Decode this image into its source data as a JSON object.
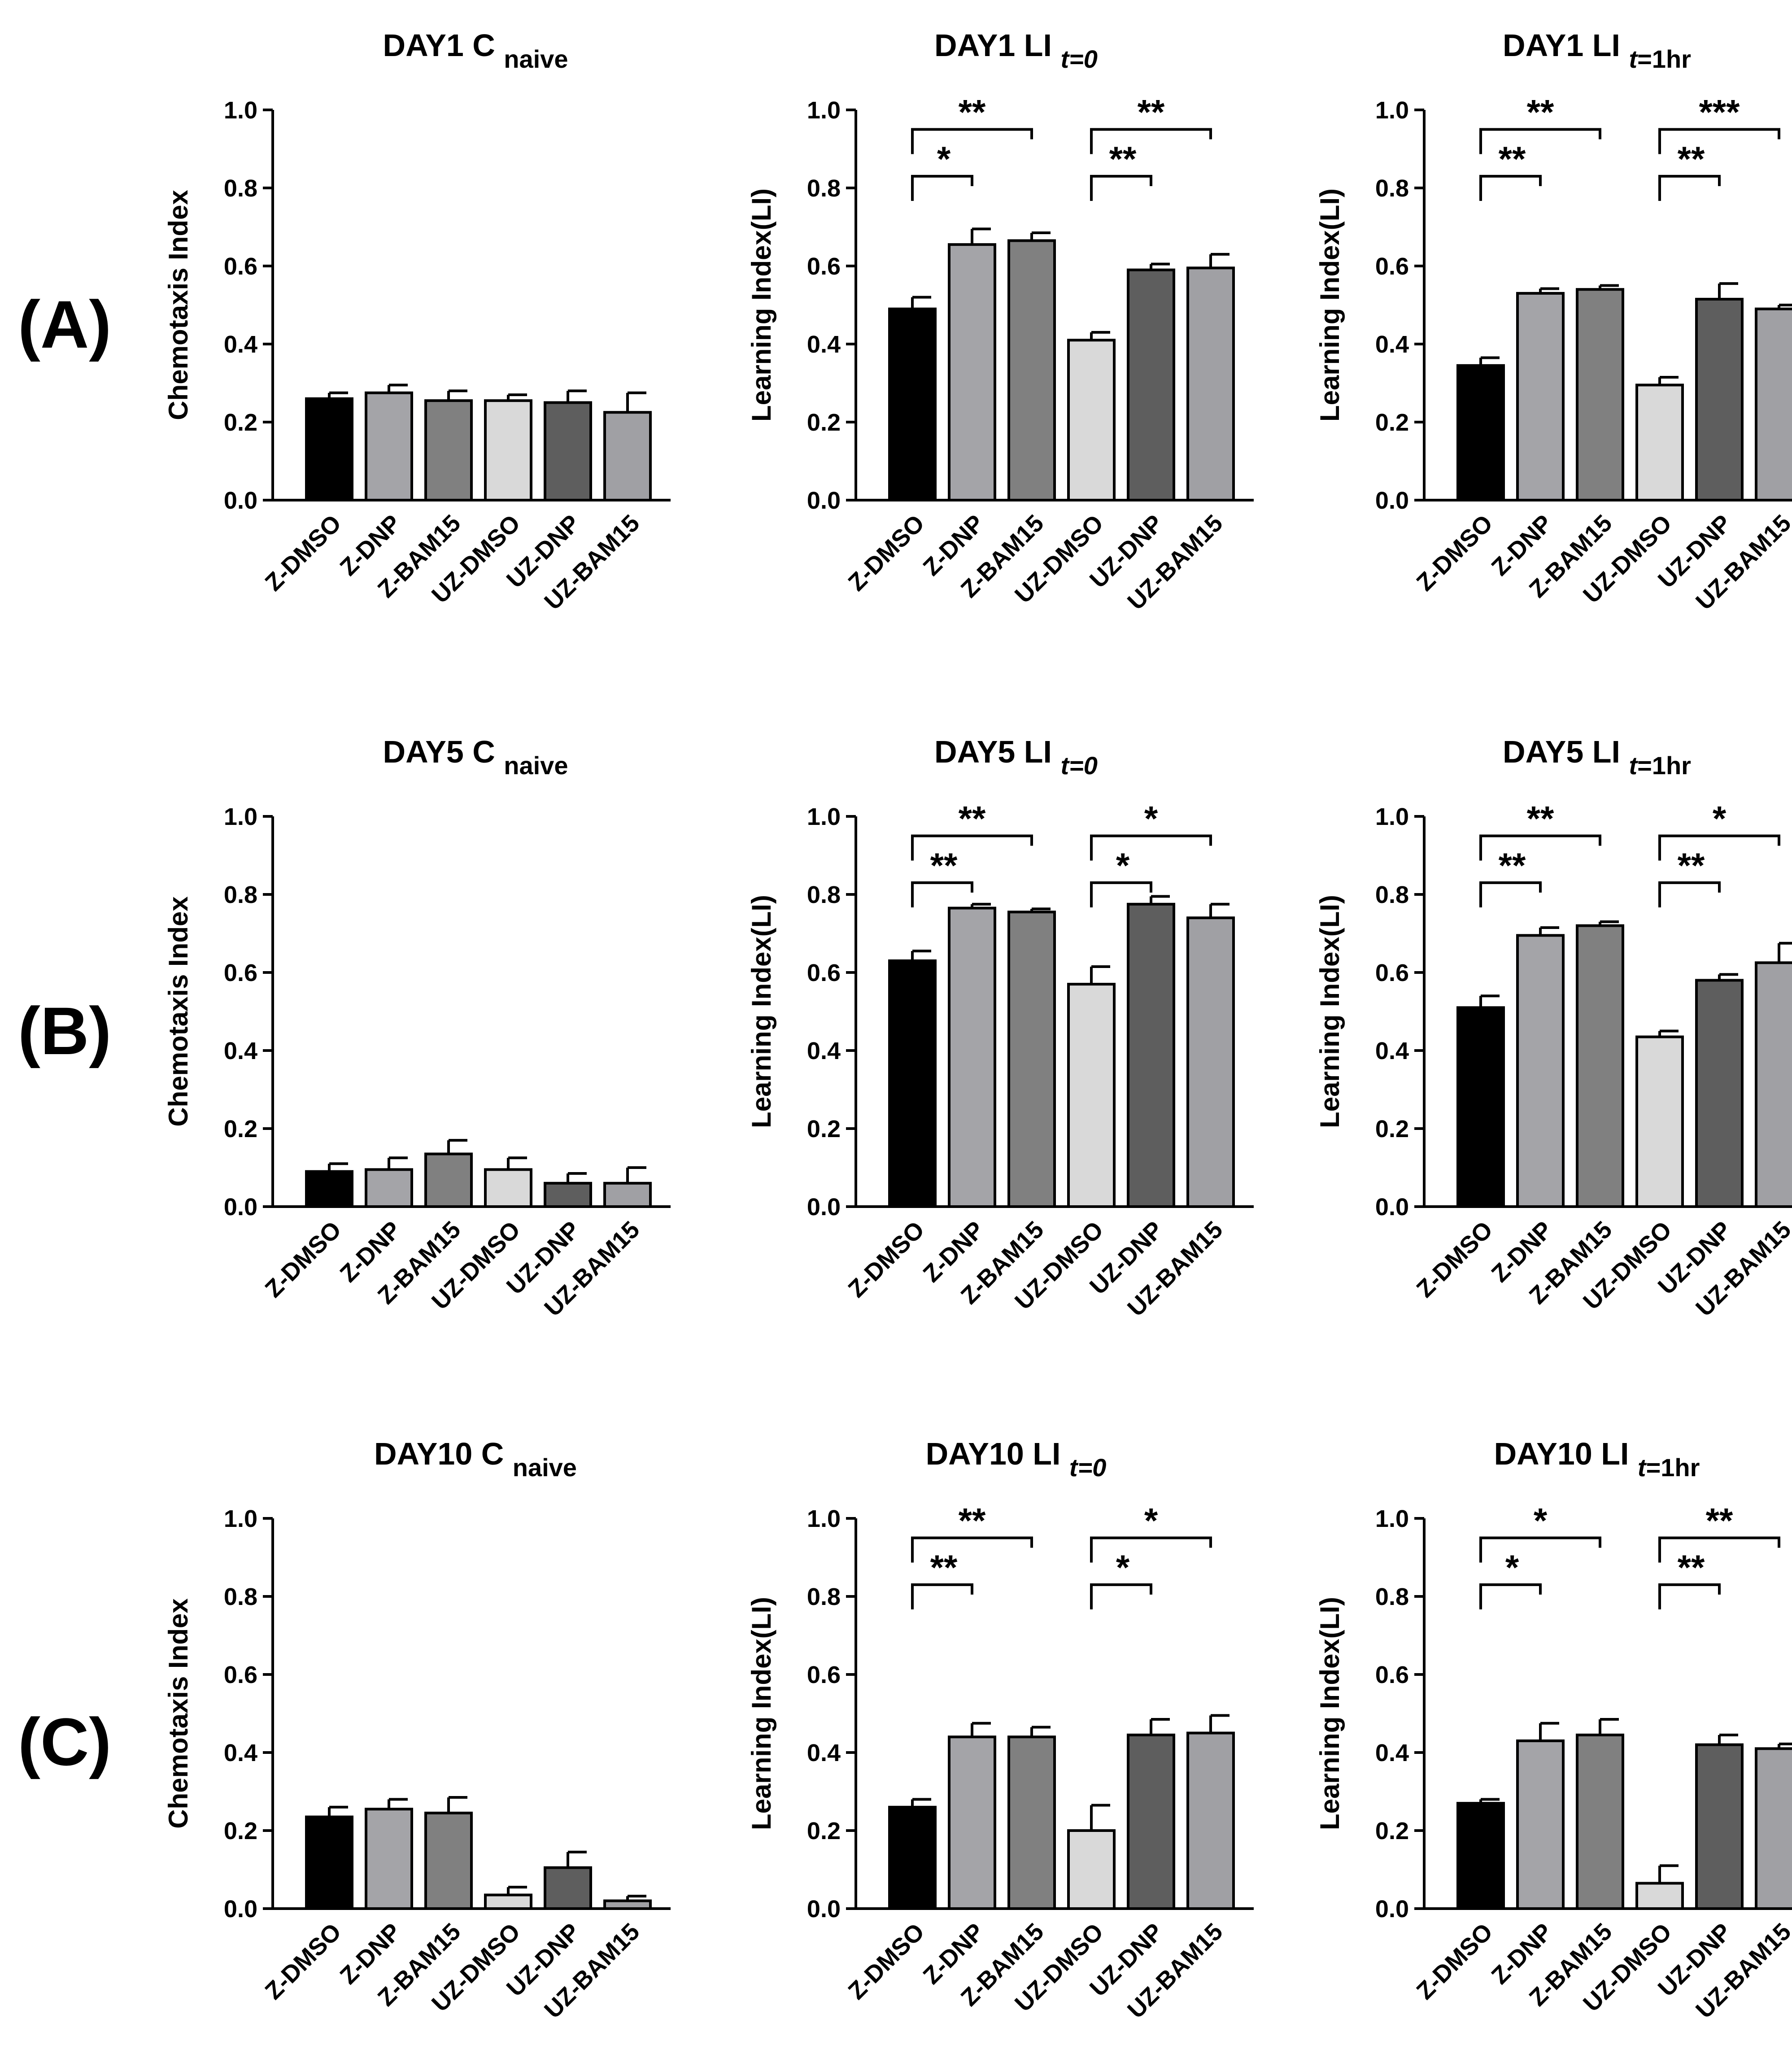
{
  "figure": {
    "row_labels": [
      "(A)",
      "(B)",
      "(C)"
    ],
    "bar_colors": [
      "#000000",
      "#a4a4a8",
      "#808080",
      "#d9d9d9",
      "#5e5e5e",
      "#a0a0a4"
    ],
    "ytick_labels": [
      "0.0",
      "0.2",
      "0.4",
      "0.6",
      "0.8",
      "1.0"
    ]
  },
  "chart_data": [
    {
      "type": "bar",
      "title_main": "DAY1 C",
      "title_sub": "naive",
      "title_sub_style": "normal",
      "ylabel": "Chemotaxis Index",
      "ylim": [
        0,
        1
      ],
      "categories": [
        "Z-DMSO",
        "Z-DNP",
        "Z-BAM15",
        "UZ-DMSO",
        "UZ-DNP",
        "UZ-BAM15"
      ],
      "values": [
        0.26,
        0.275,
        0.255,
        0.255,
        0.25,
        0.225
      ],
      "errors": [
        0.015,
        0.02,
        0.025,
        0.015,
        0.03,
        0.05
      ],
      "annotations": []
    },
    {
      "type": "bar",
      "title_main": "DAY1 LI",
      "title_sub": "t=0",
      "title_sub_style": "italic",
      "ylabel": "Learning Index(LI)",
      "ylim": [
        0,
        1
      ],
      "categories": [
        "Z-DMSO",
        "Z-DNP",
        "Z-BAM15",
        "UZ-DMSO",
        "UZ-DNP",
        "UZ-BAM15"
      ],
      "values": [
        0.49,
        0.655,
        0.665,
        0.41,
        0.59,
        0.595
      ],
      "errors": [
        0.03,
        0.04,
        0.02,
        0.02,
        0.015,
        0.035
      ],
      "annotations": [
        {
          "from": 0,
          "to": 1,
          "label": "*",
          "level": 0.83
        },
        {
          "from": 0,
          "to": 2,
          "label": "**",
          "level": 0.95
        },
        {
          "from": 3,
          "to": 4,
          "label": "**",
          "level": 0.83
        },
        {
          "from": 3,
          "to": 5,
          "label": "**",
          "level": 0.95
        }
      ]
    },
    {
      "type": "bar",
      "title_main": "DAY1 LI",
      "title_sub": "t=1hr",
      "title_sub_style": "tfirst",
      "ylabel": "Learning Index(LI)",
      "ylim": [
        0,
        1
      ],
      "categories": [
        "Z-DMSO",
        "Z-DNP",
        "Z-BAM15",
        "UZ-DMSO",
        "UZ-DNP",
        "UZ-BAM15"
      ],
      "values": [
        0.345,
        0.53,
        0.54,
        0.295,
        0.515,
        0.49
      ],
      "errors": [
        0.02,
        0.012,
        0.01,
        0.02,
        0.04,
        0.01
      ],
      "annotations": [
        {
          "from": 0,
          "to": 1,
          "label": "**",
          "level": 0.83
        },
        {
          "from": 0,
          "to": 2,
          "label": "**",
          "level": 0.95
        },
        {
          "from": 3,
          "to": 4,
          "label": "**",
          "level": 0.83
        },
        {
          "from": 3,
          "to": 5,
          "label": "***",
          "level": 0.95
        }
      ]
    },
    {
      "type": "bar",
      "title_main": "DAY5 C",
      "title_sub": "naive",
      "title_sub_style": "normal",
      "ylabel": "Chemotaxis Index",
      "ylim": [
        0,
        1
      ],
      "categories": [
        "Z-DMSO",
        "Z-DNP",
        "Z-BAM15",
        "UZ-DMSO",
        "UZ-DNP",
        "UZ-BAM15"
      ],
      "values": [
        0.09,
        0.095,
        0.135,
        0.095,
        0.06,
        0.06
      ],
      "errors": [
        0.02,
        0.03,
        0.035,
        0.03,
        0.025,
        0.04
      ],
      "annotations": []
    },
    {
      "type": "bar",
      "title_main": "DAY5 LI",
      "title_sub": "t=0",
      "title_sub_style": "italic",
      "ylabel": "Learning Index(LI)",
      "ylim": [
        0,
        1
      ],
      "categories": [
        "Z-DMSO",
        "Z-DNP",
        "Z-BAM15",
        "UZ-DMSO",
        "UZ-DNP",
        "UZ-BAM15"
      ],
      "values": [
        0.63,
        0.765,
        0.755,
        0.57,
        0.775,
        0.74
      ],
      "errors": [
        0.025,
        0.01,
        0.008,
        0.045,
        0.02,
        0.035
      ],
      "annotations": [
        {
          "from": 0,
          "to": 1,
          "label": "**",
          "level": 0.83
        },
        {
          "from": 0,
          "to": 2,
          "label": "**",
          "level": 0.95
        },
        {
          "from": 3,
          "to": 4,
          "label": "*",
          "level": 0.83
        },
        {
          "from": 3,
          "to": 5,
          "label": "*",
          "level": 0.95
        }
      ]
    },
    {
      "type": "bar",
      "title_main": "DAY5 LI",
      "title_sub": "t=1hr",
      "title_sub_style": "tfirst",
      "ylabel": "Learning Index(LI)",
      "ylim": [
        0,
        1
      ],
      "categories": [
        "Z-DMSO",
        "Z-DNP",
        "Z-BAM15",
        "UZ-DMSO",
        "UZ-DNP",
        "UZ-BAM15"
      ],
      "values": [
        0.51,
        0.695,
        0.72,
        0.435,
        0.58,
        0.625
      ],
      "errors": [
        0.03,
        0.02,
        0.01,
        0.015,
        0.015,
        0.05
      ],
      "annotations": [
        {
          "from": 0,
          "to": 1,
          "label": "**",
          "level": 0.83
        },
        {
          "from": 0,
          "to": 2,
          "label": "**",
          "level": 0.95
        },
        {
          "from": 3,
          "to": 4,
          "label": "**",
          "level": 0.83
        },
        {
          "from": 3,
          "to": 5,
          "label": "*",
          "level": 0.95
        }
      ]
    },
    {
      "type": "bar",
      "title_main": "DAY10 C",
      "title_sub": "naive",
      "title_sub_style": "normal",
      "ylabel": "Chemotaxis Index",
      "ylim": [
        0,
        1
      ],
      "categories": [
        "Z-DMSO",
        "Z-DNP",
        "Z-BAM15",
        "UZ-DMSO",
        "UZ-DNP",
        "UZ-BAM15"
      ],
      "values": [
        0.235,
        0.255,
        0.245,
        0.035,
        0.105,
        0.02
      ],
      "errors": [
        0.025,
        0.025,
        0.04,
        0.02,
        0.04,
        0.012
      ],
      "annotations": []
    },
    {
      "type": "bar",
      "title_main": "DAY10 LI",
      "title_sub": "t=0",
      "title_sub_style": "italic",
      "ylabel": "Learning Index(LI)",
      "ylim": [
        0,
        1
      ],
      "categories": [
        "Z-DMSO",
        "Z-DNP",
        "Z-BAM15",
        "UZ-DMSO",
        "UZ-DNP",
        "UZ-BAM15"
      ],
      "values": [
        0.26,
        0.44,
        0.44,
        0.2,
        0.445,
        0.45
      ],
      "errors": [
        0.02,
        0.035,
        0.025,
        0.065,
        0.04,
        0.045
      ],
      "annotations": [
        {
          "from": 0,
          "to": 1,
          "label": "**",
          "level": 0.83
        },
        {
          "from": 0,
          "to": 2,
          "label": "**",
          "level": 0.95
        },
        {
          "from": 3,
          "to": 4,
          "label": "*",
          "level": 0.83
        },
        {
          "from": 3,
          "to": 5,
          "label": "*",
          "level": 0.95
        }
      ]
    },
    {
      "type": "bar",
      "title_main": "DAY10 LI",
      "title_sub": "t=1hr",
      "title_sub_style": "tfirst",
      "ylabel": "Learning Index(LI)",
      "ylim": [
        0,
        1
      ],
      "categories": [
        "Z-DMSO",
        "Z-DNP",
        "Z-BAM15",
        "UZ-DMSO",
        "UZ-DNP",
        "UZ-BAM15"
      ],
      "values": [
        0.27,
        0.43,
        0.445,
        0.065,
        0.42,
        0.41
      ],
      "errors": [
        0.01,
        0.045,
        0.04,
        0.045,
        0.025,
        0.012
      ],
      "annotations": [
        {
          "from": 0,
          "to": 1,
          "label": "*",
          "level": 0.83
        },
        {
          "from": 0,
          "to": 2,
          "label": "*",
          "level": 0.95
        },
        {
          "from": 3,
          "to": 4,
          "label": "**",
          "level": 0.83
        },
        {
          "from": 3,
          "to": 5,
          "label": "**",
          "level": 0.95
        }
      ]
    }
  ]
}
